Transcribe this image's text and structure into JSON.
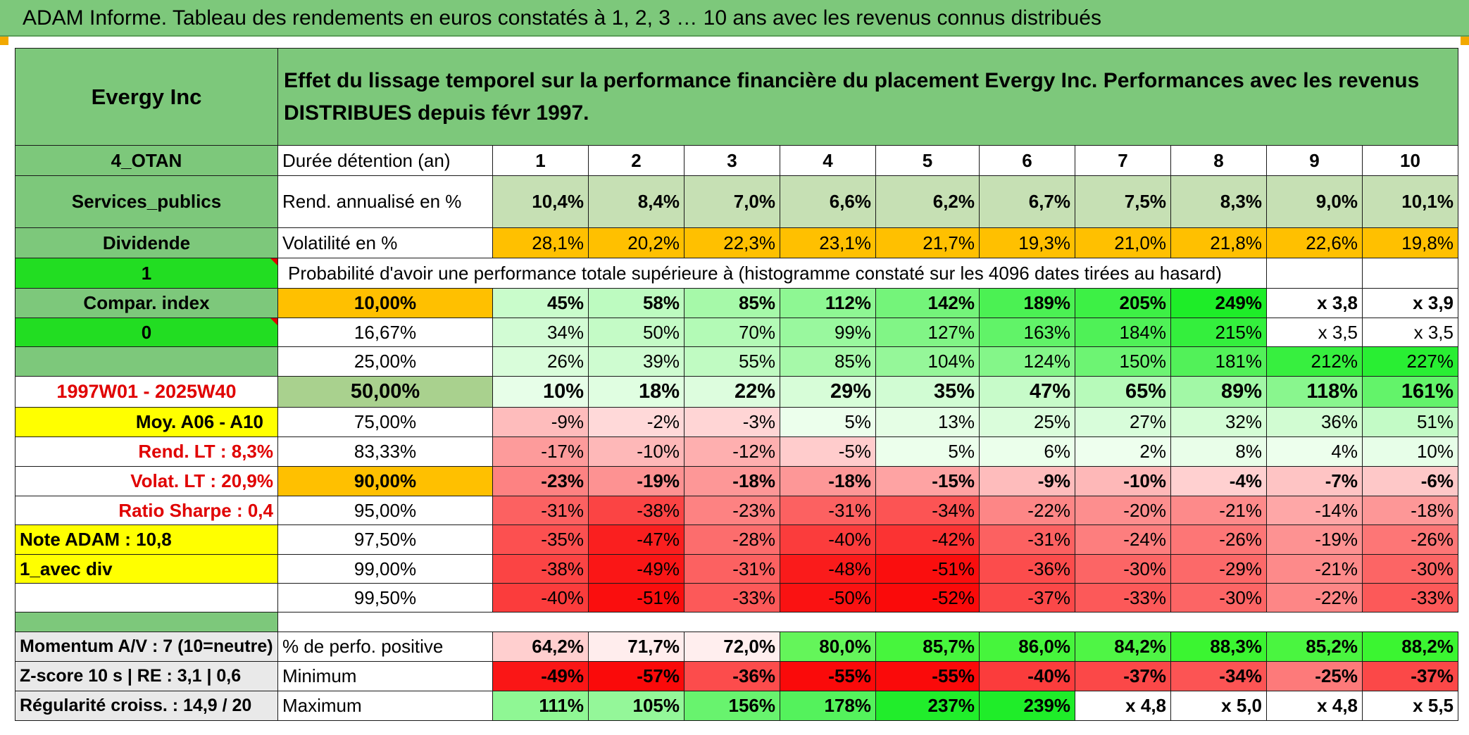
{
  "title": "ADAM Informe. Tableau des rendements en euros constatés à 1, 2, 3 … 10 ans avec les revenus connus distribués",
  "company": "Evergy Inc",
  "description": "Effet du lissage temporel sur la performance financière du placement Evergy Inc. Performances avec les revenus DISTRIBUES depuis févr 1997.",
  "left_labels": {
    "country": "4_OTAN",
    "sector": "Services_publics",
    "dividend": "Dividende",
    "one": "1",
    "compar_index": "Compar. index",
    "zero": "0",
    "period": "1997W01 - 2025W40",
    "moy": "Moy. A06 - A10",
    "rend_lt": "Rend. LT :   8,3%",
    "volat_lt": "Volat. LT :   20,9%",
    "sharpe": "Ratio Sharpe :   0,4",
    "note": "Note ADAM : 10,8",
    "avec_div": "1_avec div",
    "momentum": "Momentum A/V : 7 (10=neutre)",
    "zscore": "Z-score 10 s | RE : 3,1 | 0,6",
    "regularite": "Régularité croiss. : 14,9 / 20"
  },
  "header_row": {
    "label": "Durée détention (an)",
    "years": [
      "1",
      "2",
      "3",
      "4",
      "5",
      "6",
      "7",
      "8",
      "9",
      "10"
    ]
  },
  "rend_row": {
    "label": "Rend. annualisé en %",
    "values": [
      "10,4%",
      "8,4%",
      "7,0%",
      "6,6%",
      "6,2%",
      "6,7%",
      "7,5%",
      "8,3%",
      "9,0%",
      "10,1%"
    ]
  },
  "vol_row": {
    "label": "Volatilité en %",
    "values": [
      "28,1%",
      "20,2%",
      "22,3%",
      "23,1%",
      "21,7%",
      "19,3%",
      "21,0%",
      "21,8%",
      "22,6%",
      "19,8%"
    ]
  },
  "prob_label": "Probabilité d'avoir une performance totale supérieure à (histogramme constaté sur les 4096 dates tirées au hasard)",
  "prob_rows": [
    {
      "p": "10,00%",
      "v": [
        "45%",
        "58%",
        "85%",
        "112%",
        "142%",
        "189%",
        "205%",
        "249%",
        "x 3,8",
        "x 3,9"
      ]
    },
    {
      "p": "16,67%",
      "v": [
        "34%",
        "50%",
        "70%",
        "99%",
        "127%",
        "163%",
        "184%",
        "215%",
        "x 3,5",
        "x 3,5"
      ]
    },
    {
      "p": "25,00%",
      "v": [
        "26%",
        "39%",
        "55%",
        "85%",
        "104%",
        "124%",
        "150%",
        "181%",
        "212%",
        "227%"
      ]
    },
    {
      "p": "50,00%",
      "v": [
        "10%",
        "18%",
        "22%",
        "29%",
        "35%",
        "47%",
        "65%",
        "89%",
        "118%",
        "161%"
      ]
    },
    {
      "p": "75,00%",
      "v": [
        "-9%",
        "-2%",
        "-3%",
        "5%",
        "13%",
        "25%",
        "27%",
        "32%",
        "36%",
        "51%"
      ]
    },
    {
      "p": "83,33%",
      "v": [
        "-17%",
        "-10%",
        "-12%",
        "-5%",
        "5%",
        "6%",
        "2%",
        "8%",
        "4%",
        "10%"
      ]
    },
    {
      "p": "90,00%",
      "v": [
        "-23%",
        "-19%",
        "-18%",
        "-18%",
        "-15%",
        "-9%",
        "-10%",
        "-4%",
        "-7%",
        "-6%"
      ]
    },
    {
      "p": "95,00%",
      "v": [
        "-31%",
        "-38%",
        "-23%",
        "-31%",
        "-34%",
        "-22%",
        "-20%",
        "-21%",
        "-14%",
        "-18%"
      ]
    },
    {
      "p": "97,50%",
      "v": [
        "-35%",
        "-47%",
        "-28%",
        "-40%",
        "-42%",
        "-31%",
        "-24%",
        "-26%",
        "-19%",
        "-26%"
      ]
    },
    {
      "p": "99,00%",
      "v": [
        "-38%",
        "-49%",
        "-31%",
        "-48%",
        "-51%",
        "-36%",
        "-30%",
        "-29%",
        "-21%",
        "-30%"
      ]
    },
    {
      "p": "99,50%",
      "v": [
        "-40%",
        "-51%",
        "-33%",
        "-50%",
        "-52%",
        "-37%",
        "-33%",
        "-30%",
        "-22%",
        "-33%"
      ]
    }
  ],
  "stats_rows": [
    {
      "label": "% de perfo. positive",
      "v": [
        "64,2%",
        "71,7%",
        "72,0%",
        "80,0%",
        "85,7%",
        "86,0%",
        "84,2%",
        "88,3%",
        "85,2%",
        "88,2%"
      ]
    },
    {
      "label": "Minimum",
      "v": [
        "-49%",
        "-57%",
        "-36%",
        "-55%",
        "-55%",
        "-40%",
        "-37%",
        "-34%",
        "-25%",
        "-37%"
      ]
    },
    {
      "label": "Maximum",
      "v": [
        "111%",
        "105%",
        "156%",
        "178%",
        "237%",
        "239%",
        "x 4,8",
        "x 5,0",
        "x 4,8",
        "x 5,5"
      ]
    }
  ],
  "colors": {
    "header_green": "#7dc87b",
    "bright_green": "#22dd22",
    "gold": "#ffc000",
    "yellow": "#ffff00",
    "label_red": "#e00000",
    "rend_fill": "#c6e0b4"
  }
}
